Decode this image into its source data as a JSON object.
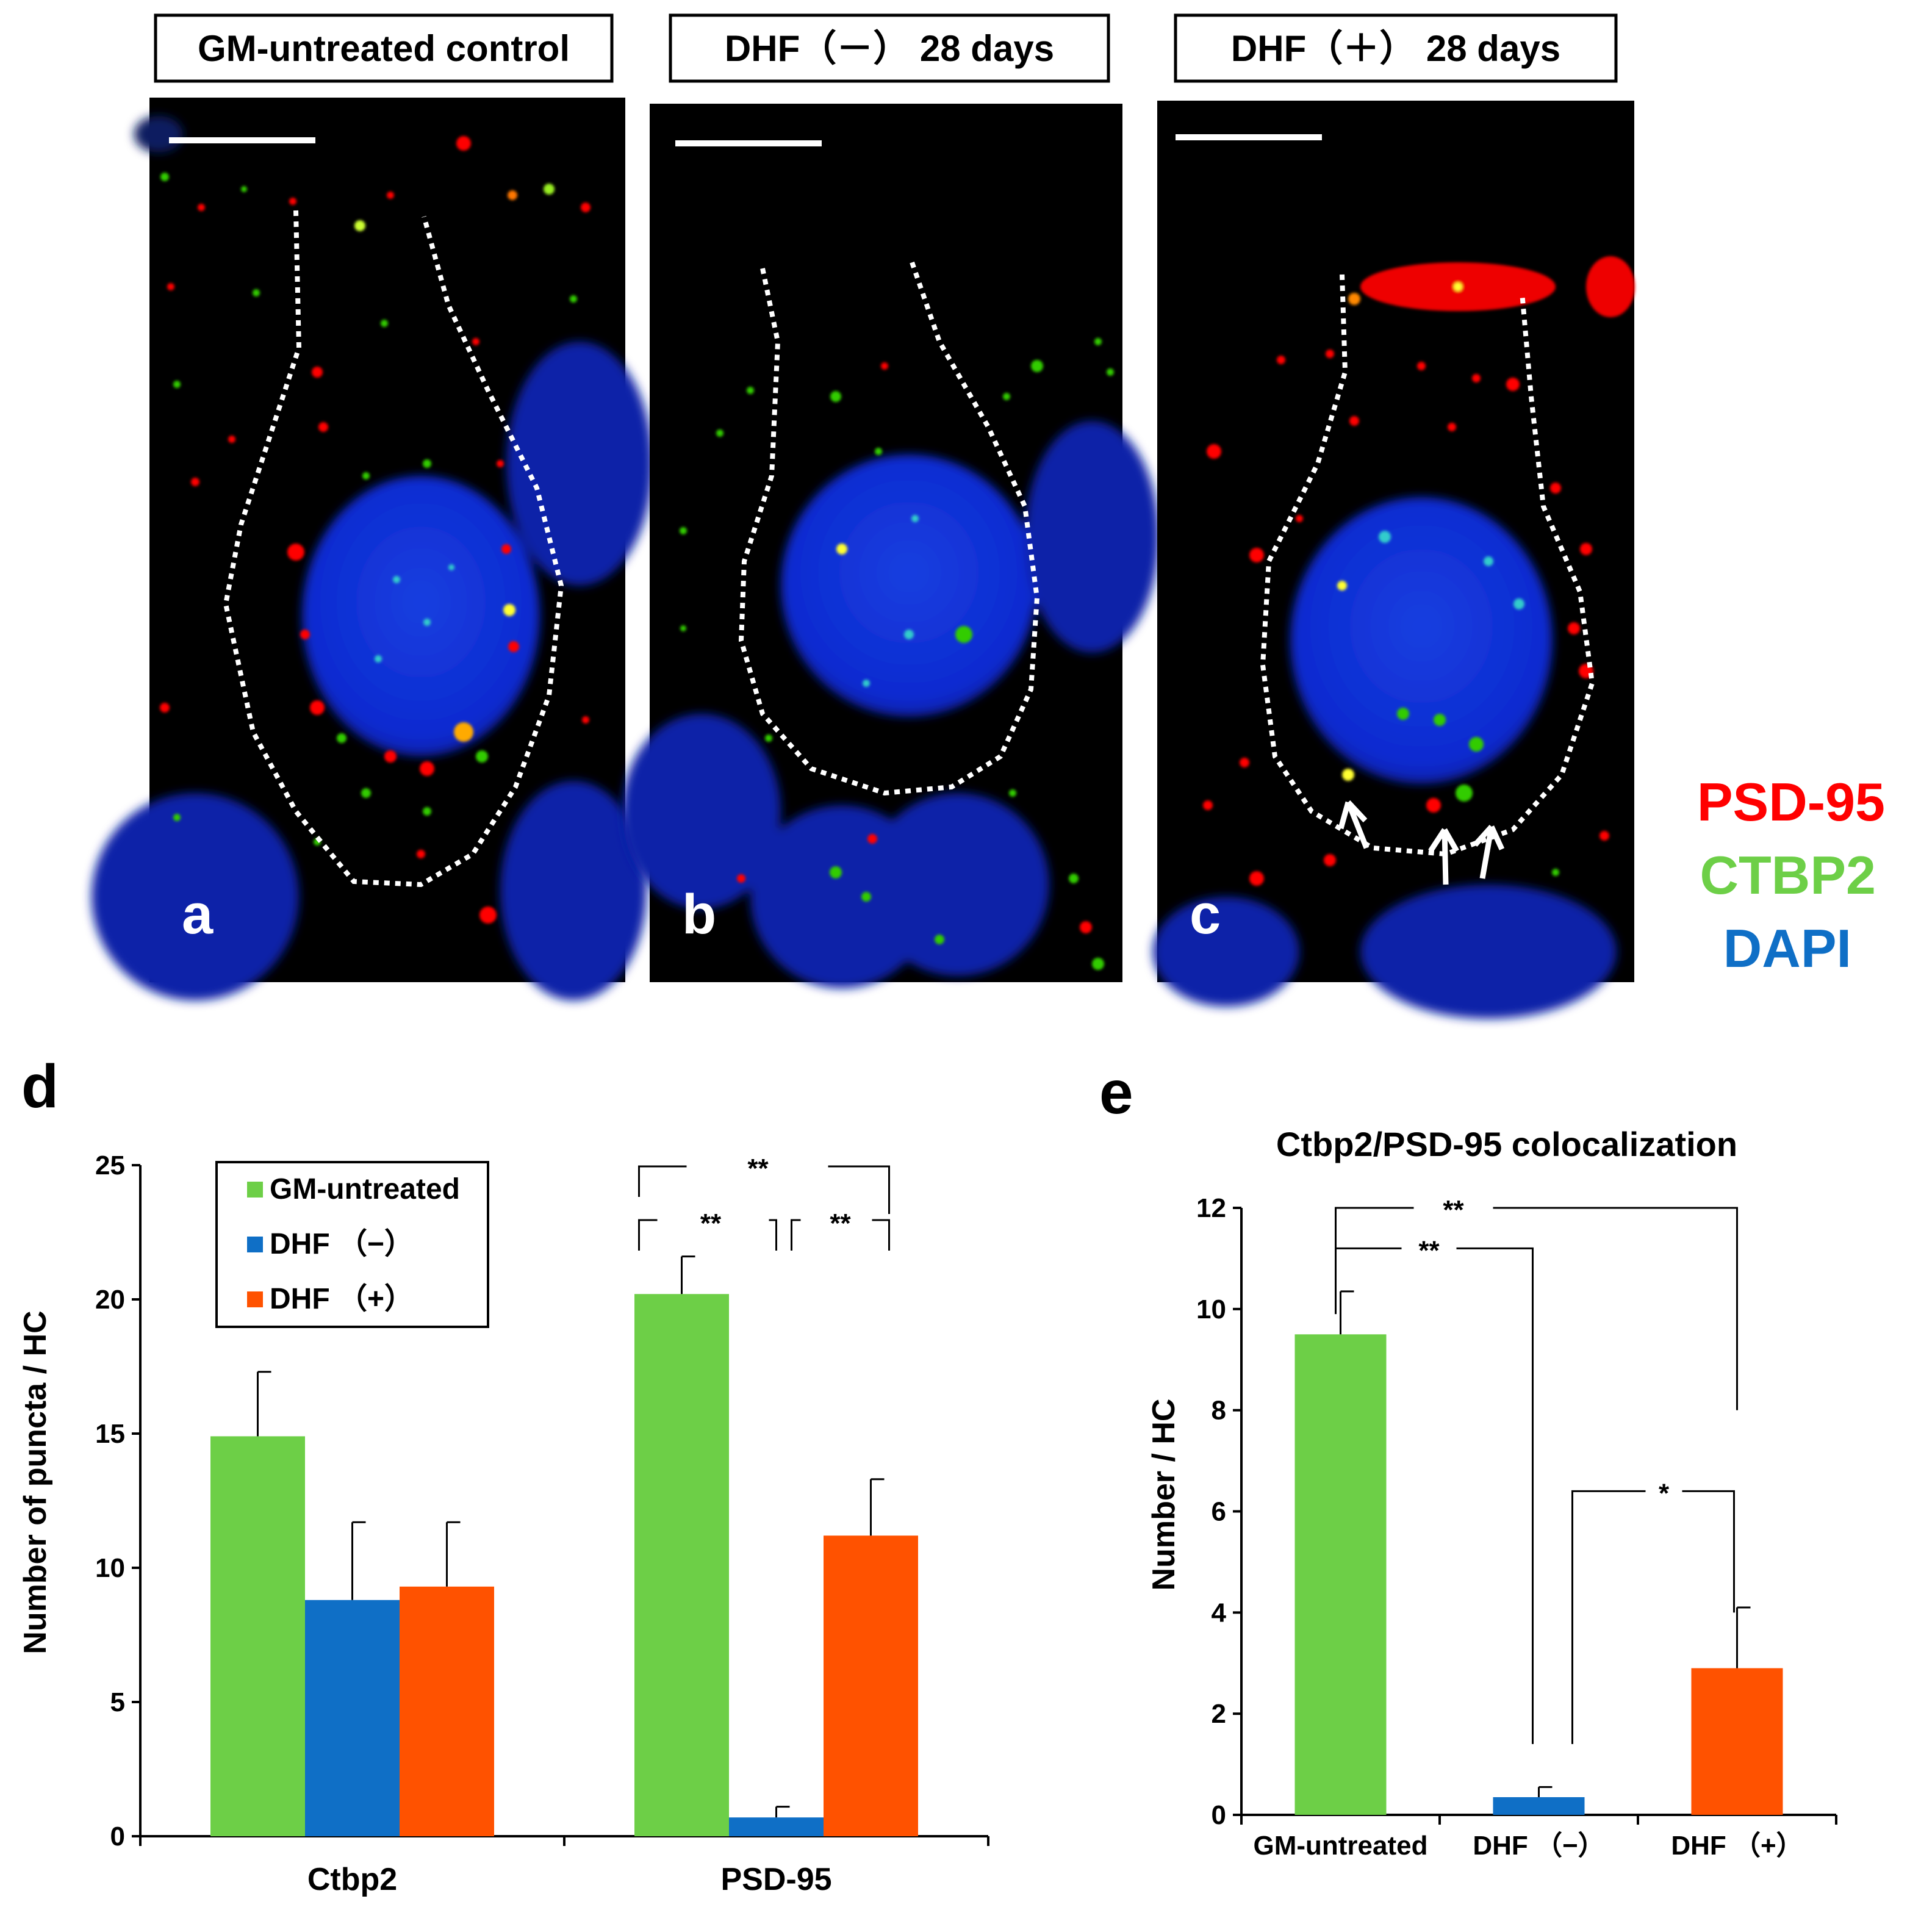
{
  "colors": {
    "green": "#6dcf47",
    "blue": "#0f6fc6",
    "orange": "#ff5200",
    "psd95": "#ff0000",
    "ctbp2": "#6dcf47",
    "dapi": "#0f6fc6"
  },
  "panels": [
    {
      "title": "GM-untreated  control",
      "letter": "a"
    },
    {
      "title": "DHF（－）  28 days",
      "letter": "b"
    },
    {
      "title": "DHF（＋）  28 days",
      "letter": "c"
    }
  ],
  "stain_legend": {
    "psd95": "PSD-95",
    "ctbp2": "CTBP2",
    "dapi": "DAPI"
  },
  "chart_data": [
    {
      "id": "d",
      "type": "bar",
      "letter": "d",
      "title": "",
      "ylabel": "Number of puncta / HC",
      "ylim": [
        0,
        25
      ],
      "yticks": [
        0,
        5,
        10,
        15,
        20,
        25
      ],
      "categories": [
        "Ctbp2",
        "PSD-95"
      ],
      "series": [
        {
          "name": "GM-untreated",
          "color": "#6dcf47",
          "values": [
            14.9,
            20.2
          ],
          "errors": [
            2.4,
            1.4
          ]
        },
        {
          "name": "DHF （−）",
          "color": "#0f6fc6",
          "values": [
            8.8,
            0.7
          ],
          "errors": [
            2.9,
            0.4
          ]
        },
        {
          "name": "DHF （+）",
          "color": "#ff5200",
          "values": [
            9.3,
            11.2
          ],
          "errors": [
            2.4,
            2.1
          ]
        }
      ],
      "significance": [
        {
          "category": "PSD-95",
          "between": [
            "GM-untreated",
            "DHF （+）"
          ],
          "label": "**"
        },
        {
          "category": "PSD-95",
          "between": [
            "GM-untreated",
            "DHF （−）"
          ],
          "label": "**"
        },
        {
          "category": "PSD-95",
          "between": [
            "DHF （−）",
            "DHF （+）"
          ],
          "label": "**"
        }
      ],
      "legend_placement": "top-left"
    },
    {
      "id": "e",
      "type": "bar",
      "letter": "e",
      "title": "Ctbp2/PSD-95 colocalization",
      "ylabel": "Number / HC",
      "ylim": [
        0,
        12
      ],
      "yticks": [
        0,
        2,
        4,
        6,
        8,
        10,
        12
      ],
      "categories": [
        "GM-untreated",
        "DHF （−）",
        "DHF （+）"
      ],
      "values": [
        9.5,
        0.35,
        2.9
      ],
      "errors": [
        0.85,
        0.2,
        1.2
      ],
      "colors": [
        "#6dcf47",
        "#0f6fc6",
        "#ff5200"
      ],
      "significance": [
        {
          "between": [
            "GM-untreated",
            "DHF （+）"
          ],
          "label": "**"
        },
        {
          "between": [
            "GM-untreated",
            "DHF （−）"
          ],
          "label": "**"
        },
        {
          "between": [
            "DHF （−）",
            "DHF （+）"
          ],
          "label": "*"
        }
      ]
    }
  ]
}
